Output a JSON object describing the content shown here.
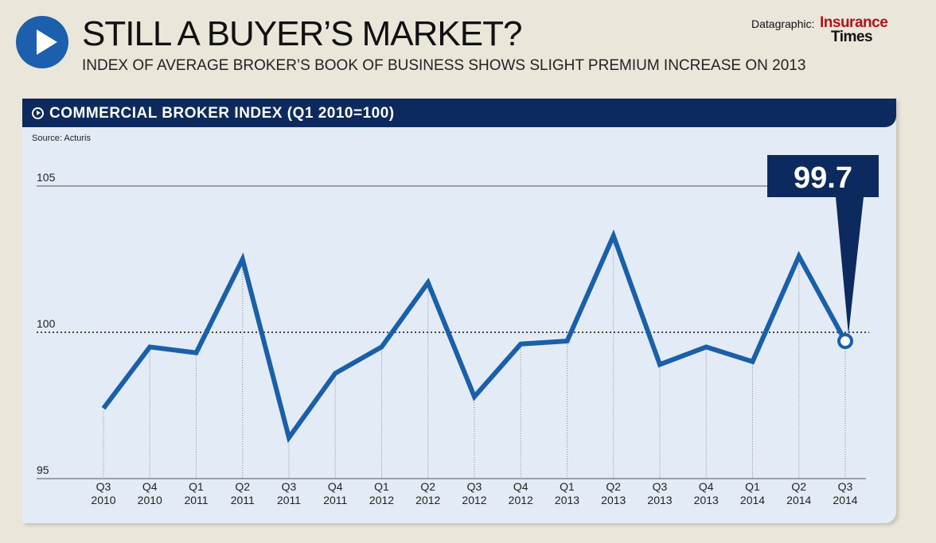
{
  "header": {
    "title": "STILL A BUYER’S MARKET?",
    "subtitle": "INDEX OF AVERAGE BROKER’S BOOK OF BUSINESS SHOWS SLIGHT PREMIUM INCREASE ON 2013",
    "credit": "Datagraphic:",
    "logo_line1": "Insurance",
    "logo_line2": "Times"
  },
  "chart_data": {
    "type": "line",
    "title": "COMMERCIAL BROKER INDEX (Q1 2010=100)",
    "source": "Source: Acturis",
    "categories": [
      [
        "Q3",
        "2010"
      ],
      [
        "Q4",
        "2010"
      ],
      [
        "Q1",
        "2011"
      ],
      [
        "Q2",
        "2011"
      ],
      [
        "Q3",
        "2011"
      ],
      [
        "Q4",
        "2011"
      ],
      [
        "Q1",
        "2012"
      ],
      [
        "Q2",
        "2012"
      ],
      [
        "Q3",
        "2012"
      ],
      [
        "Q4",
        "2012"
      ],
      [
        "Q1",
        "2013"
      ],
      [
        "Q2",
        "2013"
      ],
      [
        "Q3",
        "2013"
      ],
      [
        "Q4",
        "2013"
      ],
      [
        "Q1",
        "2014"
      ],
      [
        "Q2",
        "2014"
      ],
      [
        "Q3",
        "2014"
      ]
    ],
    "values": [
      97.4,
      99.5,
      99.3,
      102.5,
      96.4,
      98.6,
      99.5,
      101.7,
      97.8,
      99.6,
      99.7,
      103.3,
      98.9,
      99.5,
      99.0,
      102.6,
      99.7
    ],
    "yticks": [
      "105",
      "100",
      "95"
    ],
    "ylim": [
      95,
      105
    ],
    "callout": "99.7",
    "colors": {
      "line": "#1a5fa8",
      "navy": "#0d2a5f"
    }
  }
}
